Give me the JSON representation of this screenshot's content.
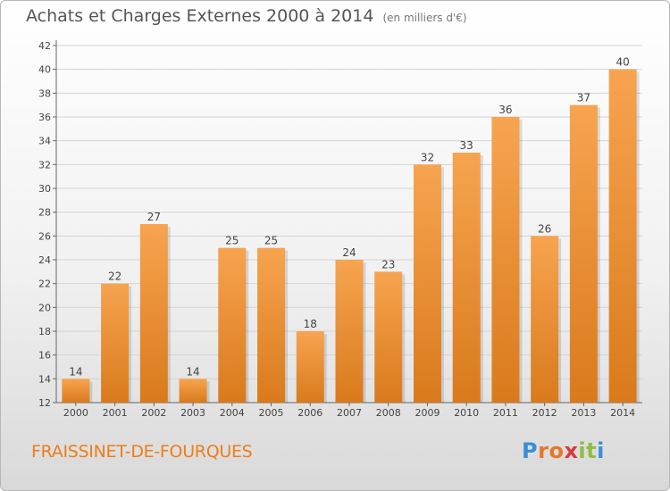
{
  "header": {
    "title": "Achats et Charges Externes 2000 à 2014",
    "subtitle": "(en milliers d'€)"
  },
  "footer": {
    "commune": "FRAISSINET-DE-FOURQUES",
    "logo_letters": [
      "P",
      "r",
      "o",
      "x",
      "i",
      "t",
      "i"
    ],
    "logo_colors": [
      "#3a8fd6",
      "#e8772a",
      "#e8772a",
      "#d93a3a",
      "#8cbf3f",
      "#8cbf3f",
      "#3a8fd6"
    ]
  },
  "chart_data": {
    "type": "bar",
    "title": "Achats et Charges Externes 2000 à 2014",
    "subtitle": "(en milliers d'€)",
    "categories": [
      "2000",
      "2001",
      "2002",
      "2003",
      "2004",
      "2005",
      "2006",
      "2007",
      "2008",
      "2009",
      "2010",
      "2011",
      "2012",
      "2013",
      "2014"
    ],
    "values": [
      14,
      22,
      27,
      14,
      25,
      25,
      18,
      24,
      23,
      32,
      33,
      36,
      26,
      37,
      40
    ],
    "ylim": [
      12,
      42
    ],
    "yticks": [
      12,
      14,
      16,
      18,
      20,
      22,
      24,
      26,
      28,
      30,
      32,
      34,
      36,
      38,
      40,
      42
    ],
    "grid": true,
    "bar_color_top": "#f7a450",
    "bar_color_bottom": "#d97a1c"
  }
}
